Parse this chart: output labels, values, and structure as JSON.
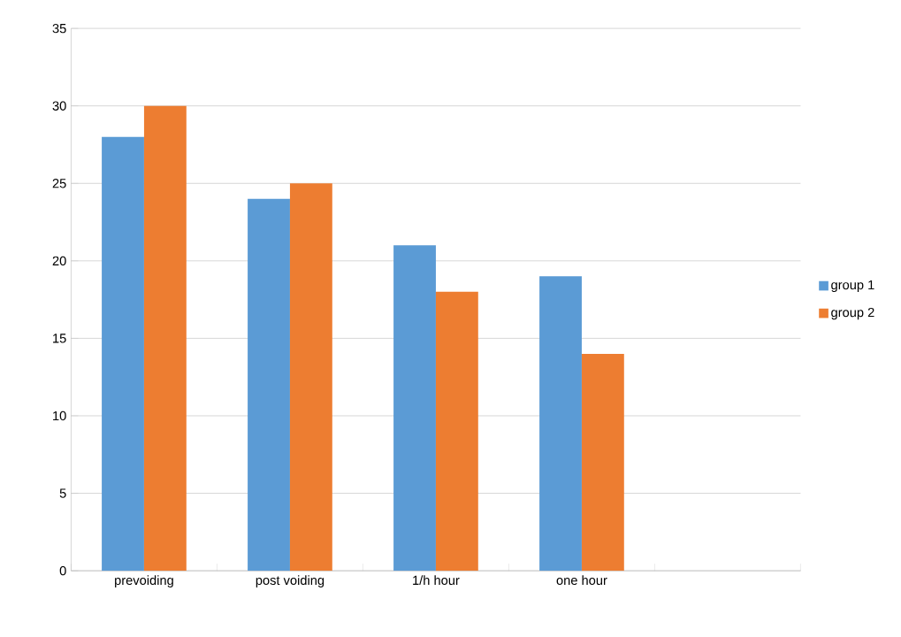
{
  "chart_data": {
    "type": "bar",
    "categories": [
      "prevoiding",
      "post voiding",
      "1/h hour",
      "one hour",
      null
    ],
    "series": [
      {
        "name": "group 1",
        "color": "#5b9bd5",
        "values": [
          28,
          24,
          21,
          19,
          null
        ]
      },
      {
        "name": "group 2",
        "color": "#ed7d31",
        "values": [
          30,
          25,
          18,
          14,
          null
        ]
      }
    ],
    "ylim": [
      0,
      35
    ],
    "yticks": [
      0,
      5,
      10,
      15,
      20,
      25,
      30,
      35
    ],
    "grid": "y",
    "legend": "right"
  }
}
